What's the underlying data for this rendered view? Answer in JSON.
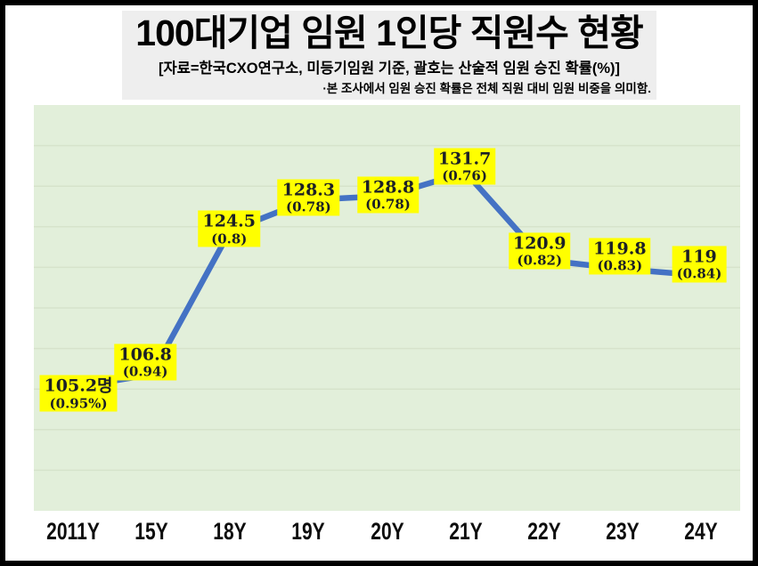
{
  "header": {
    "title": "100대기업 임원 1인당 직원수 현황",
    "subtitle": "[자료=한국CXO연구소, 미등기임원 기준, 괄호는 산술적 임원 승진 확률(%)]",
    "note": "·본 조사에서 임원 승진 확률은 전체 직원 대비 임원 비중을 의미함."
  },
  "chart_data": {
    "type": "line",
    "title": "100대기업 임원 1인당 직원수 현황",
    "categories": [
      "2011Y",
      "15Y",
      "18Y",
      "19Y",
      "20Y",
      "21Y",
      "22Y",
      "23Y",
      "24Y"
    ],
    "series": [
      {
        "name": "임원 1인당 직원수(명)",
        "values": [
          105.2,
          106.8,
          124.5,
          128.3,
          128.8,
          131.7,
          120.9,
          119.8,
          119
        ]
      },
      {
        "name": "산술적 임원 승진 확률(%)",
        "values": [
          0.95,
          0.94,
          0.8,
          0.78,
          0.78,
          0.76,
          0.82,
          0.83,
          0.84
        ]
      }
    ],
    "point_labels": [
      {
        "value": "105.2명",
        "prob": "(0.95%)"
      },
      {
        "value": "106.8",
        "prob": "(0.94)"
      },
      {
        "value": "124.5",
        "prob": "(0.8)"
      },
      {
        "value": "128.3",
        "prob": "(0.78)"
      },
      {
        "value": "128.8",
        "prob": "(0.78)"
      },
      {
        "value": "131.7",
        "prob": "(0.76)"
      },
      {
        "value": "120.9",
        "prob": "(0.82)"
      },
      {
        "value": "119.8",
        "prob": "(0.83)"
      },
      {
        "value": "119",
        "prob": "(0.84)"
      }
    ],
    "xlabel": "",
    "ylabel": "",
    "ylim": [
      90,
      140
    ],
    "grid_step": 5,
    "grid": "horizontal-only",
    "legend": "none",
    "colors": {
      "line": "#4472c4",
      "label_bg": "#ffff00",
      "label_text": "#1c2026",
      "plot_bg": "#e2efda",
      "grid": "#d6e3cb",
      "title_bg": "#eeeeee",
      "frame_border": "#000000"
    }
  }
}
